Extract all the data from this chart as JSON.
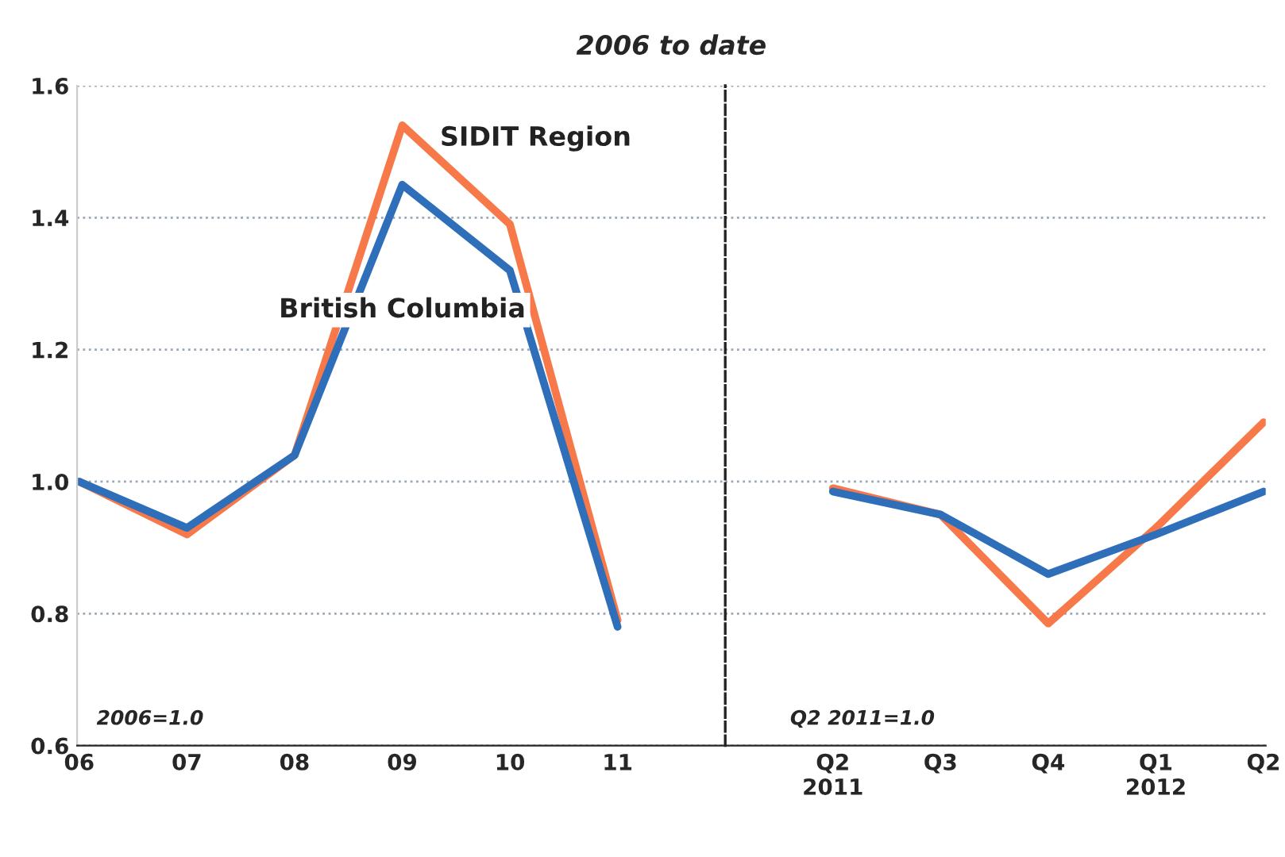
{
  "chart_data": [
    {
      "type": "line",
      "subtitle": "2006 to date",
      "categories": [
        "06",
        "07",
        "08",
        "09",
        "10",
        "11"
      ],
      "ylim": [
        0.6,
        1.6
      ],
      "yticks": [
        {
          "value": 0.6,
          "label": "0.6"
        },
        {
          "value": 0.8,
          "label": "0.8"
        },
        {
          "value": 1.0,
          "label": "1.0"
        },
        {
          "value": 1.2,
          "label": "1.2"
        },
        {
          "value": 1.4,
          "label": "1.4"
        },
        {
          "value": 1.6,
          "label": "1.6"
        }
      ],
      "grid": "y",
      "line_style": "solid",
      "series": [
        {
          "name": "SIDIT Region",
          "color": "#f7794a",
          "values": [
            1.0,
            0.92,
            1.04,
            1.54,
            1.39,
            0.79
          ]
        },
        {
          "name": "British Columbia",
          "color": "#2f6fba",
          "values": [
            1.0,
            0.93,
            1.04,
            1.45,
            1.32,
            0.78
          ]
        }
      ],
      "annotations": [
        "2006=1.0"
      ]
    },
    {
      "type": "line",
      "categories": [
        "Q2\n2011",
        "Q3",
        "Q4",
        "Q1\n2012",
        "Q2"
      ],
      "ylim": [
        0.6,
        1.6
      ],
      "yticks": [
        0.6,
        0.8,
        1.0,
        1.2,
        1.4,
        1.6
      ],
      "tick_labels": "x",
      "grid": "y",
      "line_style": "solid",
      "series": [
        {
          "color": "#f7794a",
          "values": [
            0.99,
            0.95,
            0.785,
            0.93,
            1.09
          ]
        },
        {
          "color": "#2f6fba",
          "values": [
            0.985,
            0.95,
            0.86,
            0.92,
            0.985
          ]
        }
      ],
      "annotations": [
        "Q2 2011=1.0"
      ]
    }
  ]
}
